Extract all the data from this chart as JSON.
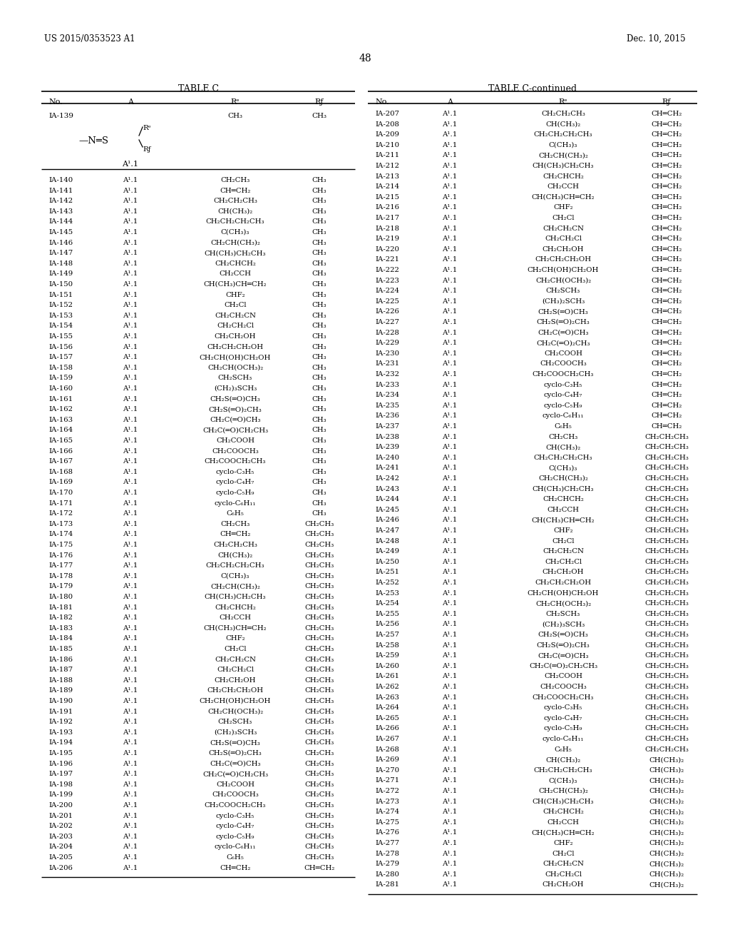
{
  "patent_number": "US 2015/0353523 A1",
  "patent_date": "Dec. 10, 2015",
  "page_number": "48",
  "table_c_title": "TABLE C",
  "table_c_continued_title": "TABLE C-continued",
  "left_table_rows": [
    [
      "IA-139",
      "A¹.1_structure",
      "CH₃",
      "CH₃"
    ],
    [
      "IA-140",
      "A¹.1",
      "CH₂CH₃",
      "CH₃"
    ],
    [
      "IA-141",
      "A¹.1",
      "CH═CH₂",
      "CH₃"
    ],
    [
      "IA-142",
      "A¹.1",
      "CH₂CH₂CH₃",
      "CH₃"
    ],
    [
      "IA-143",
      "A¹.1",
      "CH(CH₃)₂",
      "CH₃"
    ],
    [
      "IA-144",
      "A¹.1",
      "CH₂CH₂CH₂CH₃",
      "CH₃"
    ],
    [
      "IA-145",
      "A¹.1",
      "C(CH₃)₃",
      "CH₃"
    ],
    [
      "IA-146",
      "A¹.1",
      "CH₂CH(CH₃)₂",
      "CH₃"
    ],
    [
      "IA-147",
      "A¹.1",
      "CH(CH₃)CH₂CH₃",
      "CH₃"
    ],
    [
      "IA-148",
      "A¹.1",
      "CH₂CHCH₂",
      "CH₃"
    ],
    [
      "IA-149",
      "A¹.1",
      "CH₂CCH",
      "CH₃"
    ],
    [
      "IA-150",
      "A¹.1",
      "CH(CH₃)CH═CH₂",
      "CH₃"
    ],
    [
      "IA-151",
      "A¹.1",
      "CHF₂",
      "CH₃"
    ],
    [
      "IA-152",
      "A¹.1",
      "CH₂Cl",
      "CH₃"
    ],
    [
      "IA-153",
      "A¹.1",
      "CH₂CH₂CN",
      "CH₃"
    ],
    [
      "IA-154",
      "A¹.1",
      "CH₂CH₂Cl",
      "CH₃"
    ],
    [
      "IA-155",
      "A¹.1",
      "CH₂CH₂OH",
      "CH₃"
    ],
    [
      "IA-156",
      "A¹.1",
      "CH₂CH₂CH₂OH",
      "CH₃"
    ],
    [
      "IA-157",
      "A¹.1",
      "CH₂CH(OH)CH₂OH",
      "CH₃"
    ],
    [
      "IA-158",
      "A¹.1",
      "CH₂CH(OCH₃)₂",
      "CH₃"
    ],
    [
      "IA-159",
      "A¹.1",
      "CH₂SCH₃",
      "CH₃"
    ],
    [
      "IA-160",
      "A¹.1",
      "(CH₂)₃SCH₃",
      "CH₃"
    ],
    [
      "IA-161",
      "A¹.1",
      "CH₂S(═O)CH₃",
      "CH₃"
    ],
    [
      "IA-162",
      "A¹.1",
      "CH₂S(═O)₂CH₃",
      "CH₃"
    ],
    [
      "IA-163",
      "A¹.1",
      "CH₂C(═O)CH₃",
      "CH₃"
    ],
    [
      "IA-164",
      "A¹.1",
      "CH₂C(═O)CH₂CH₃",
      "CH₃"
    ],
    [
      "IA-165",
      "A¹.1",
      "CH₂COOH",
      "CH₃"
    ],
    [
      "IA-166",
      "A¹.1",
      "CH₂COOCH₃",
      "CH₃"
    ],
    [
      "IA-167",
      "A¹.1",
      "CH₂COOCH₂CH₃",
      "CH₃"
    ],
    [
      "IA-168",
      "A¹.1",
      "cyclo-C₃H₅",
      "CH₃"
    ],
    [
      "IA-169",
      "A¹.1",
      "cyclo-C₄H₇",
      "CH₃"
    ],
    [
      "IA-170",
      "A¹.1",
      "cyclo-C₅H₉",
      "CH₃"
    ],
    [
      "IA-171",
      "A¹.1",
      "cyclo-C₆H₁₁",
      "CH₃"
    ],
    [
      "IA-172",
      "A¹.1",
      "C₆H₅",
      "CH₃"
    ],
    [
      "IA-173",
      "A¹.1",
      "CH₂CH₃",
      "CH₂CH₃"
    ],
    [
      "IA-174",
      "A¹.1",
      "CH═CH₂",
      "CH₂CH₃"
    ],
    [
      "IA-175",
      "A¹.1",
      "CH₂CH₂CH₃",
      "CH₂CH₃"
    ],
    [
      "IA-176",
      "A¹.1",
      "CH(CH₃)₂",
      "CH₂CH₃"
    ],
    [
      "IA-177",
      "A¹.1",
      "CH₂CH₂CH₂CH₃",
      "CH₂CH₃"
    ],
    [
      "IA-178",
      "A¹.1",
      "C(CH₃)₃",
      "CH₂CH₃"
    ],
    [
      "IA-179",
      "A¹.1",
      "CH₂CH(CH₃)₂",
      "CH₂CH₃"
    ],
    [
      "IA-180",
      "A¹.1",
      "CH(CH₃)CH₂CH₃",
      "CH₂CH₃"
    ],
    [
      "IA-181",
      "A¹.1",
      "CH₂CHCH₂",
      "CH₂CH₃"
    ],
    [
      "IA-182",
      "A¹.1",
      "CH₂CCH",
      "CH₂CH₃"
    ],
    [
      "IA-183",
      "A¹.1",
      "CH(CH₃)CH═CH₂",
      "CH₂CH₃"
    ],
    [
      "IA-184",
      "A¹.1",
      "CHF₂",
      "CH₂CH₃"
    ],
    [
      "IA-185",
      "A¹.1",
      "CH₂Cl",
      "CH₂CH₃"
    ],
    [
      "IA-186",
      "A¹.1",
      "CH₂CH₂CN",
      "CH₂CH₃"
    ],
    [
      "IA-187",
      "A¹.1",
      "CH₂CH₂Cl",
      "CH₂CH₃"
    ],
    [
      "IA-188",
      "A¹.1",
      "CH₂CH₂OH",
      "CH₂CH₃"
    ],
    [
      "IA-189",
      "A¹.1",
      "CH₂CH₂CH₂OH",
      "CH₂CH₃"
    ],
    [
      "IA-190",
      "A¹.1",
      "CH₂CH(OH)CH₂OH",
      "CH₂CH₃"
    ],
    [
      "IA-191",
      "A¹.1",
      "CH₂CH(OCH₃)₂",
      "CH₂CH₃"
    ],
    [
      "IA-192",
      "A¹.1",
      "CH₂SCH₃",
      "CH₂CH₃"
    ],
    [
      "IA-193",
      "A¹.1",
      "(CH₂)₃SCH₃",
      "CH₂CH₃"
    ],
    [
      "IA-194",
      "A¹.1",
      "CH₂S(═O)CH₃",
      "CH₂CH₃"
    ],
    [
      "IA-195",
      "A¹.1",
      "CH₂S(═O)₂CH₃",
      "CH₂CH₃"
    ],
    [
      "IA-196",
      "A¹.1",
      "CH₂C(═O)CH₃",
      "CH₂CH₃"
    ],
    [
      "IA-197",
      "A¹.1",
      "CH₂C(═O)CH₂CH₃",
      "CH₂CH₃"
    ],
    [
      "IA-198",
      "A¹.1",
      "CH₂COOH",
      "CH₂CH₃"
    ],
    [
      "IA-199",
      "A¹.1",
      "CH₂COOCH₃",
      "CH₂CH₃"
    ],
    [
      "IA-200",
      "A¹.1",
      "CH₂COOCH₂CH₃",
      "CH₂CH₃"
    ],
    [
      "IA-201",
      "A¹.1",
      "cyclo-C₃H₅",
      "CH₂CH₃"
    ],
    [
      "IA-202",
      "A¹.1",
      "cyclo-C₄H₇",
      "CH₂CH₃"
    ],
    [
      "IA-203",
      "A¹.1",
      "cyclo-C₅H₉",
      "CH₂CH₃"
    ],
    [
      "IA-204",
      "A¹.1",
      "cyclo-C₆H₁₁",
      "CH₂CH₃"
    ],
    [
      "IA-205",
      "A¹.1",
      "C₆H₅",
      "CH₂CH₃"
    ],
    [
      "IA-206",
      "A¹.1",
      "CH═CH₂",
      "CH═CH₂"
    ]
  ],
  "right_table_rows": [
    [
      "IA-207",
      "A¹.1",
      "CH₂CH₂CH₃",
      "CH═CH₂"
    ],
    [
      "IA-208",
      "A¹.1",
      "CH(CH₃)₂",
      "CH═CH₂"
    ],
    [
      "IA-209",
      "A¹.1",
      "CH₂CH₂CH₂CH₃",
      "CH═CH₂"
    ],
    [
      "IA-210",
      "A¹.1",
      "C(CH₃)₃",
      "CH═CH₂"
    ],
    [
      "IA-211",
      "A¹.1",
      "CH₂CH(CH₃)₂",
      "CH═CH₂"
    ],
    [
      "IA-212",
      "A¹.1",
      "CH(CH₃)CH₂CH₃",
      "CH═CH₂"
    ],
    [
      "IA-213",
      "A¹.1",
      "CH₂CHCH₂",
      "CH═CH₂"
    ],
    [
      "IA-214",
      "A¹.1",
      "CH₂CCH",
      "CH═CH₂"
    ],
    [
      "IA-215",
      "A¹.1",
      "CH(CH₃)CH═CH₂",
      "CH═CH₂"
    ],
    [
      "IA-216",
      "A¹.1",
      "CHF₂",
      "CH═CH₂"
    ],
    [
      "IA-217",
      "A¹.1",
      "CH₂Cl",
      "CH═CH₂"
    ],
    [
      "IA-218",
      "A¹.1",
      "CH₂CH₂CN",
      "CH═CH₂"
    ],
    [
      "IA-219",
      "A¹.1",
      "CH₂CH₂Cl",
      "CH═CH₂"
    ],
    [
      "IA-220",
      "A¹.1",
      "CH₂CH₂OH",
      "CH═CH₂"
    ],
    [
      "IA-221",
      "A¹.1",
      "CH₂CH₂CH₂OH",
      "CH═CH₂"
    ],
    [
      "IA-222",
      "A¹.1",
      "CH₂CH(OH)CH₂OH",
      "CH═CH₂"
    ],
    [
      "IA-223",
      "A¹.1",
      "CH₂CH(OCH₃)₂",
      "CH═CH₂"
    ],
    [
      "IA-224",
      "A¹.1",
      "CH₂SCH₃",
      "CH═CH₂"
    ],
    [
      "IA-225",
      "A¹.1",
      "(CH₃)₂SCH₃",
      "CH═CH₂"
    ],
    [
      "IA-226",
      "A¹.1",
      "CH₂S(═O)CH₃",
      "CH═CH₂"
    ],
    [
      "IA-227",
      "A¹.1",
      "CH₂S(═O)₂CH₃",
      "CH═CH₂"
    ],
    [
      "IA-228",
      "A¹.1",
      "CH₂C(═O)CH₃",
      "CH═CH₂"
    ],
    [
      "IA-229",
      "A¹.1",
      "CH₂C(═O)₂CH₃",
      "CH═CH₂"
    ],
    [
      "IA-230",
      "A¹.1",
      "CH₂COOH",
      "CH═CH₂"
    ],
    [
      "IA-231",
      "A¹.1",
      "CH₂COOCH₃",
      "CH═CH₂"
    ],
    [
      "IA-232",
      "A¹.1",
      "CH₂COOCH₂CH₃",
      "CH═CH₂"
    ],
    [
      "IA-233",
      "A¹.1",
      "cyclo-C₃H₅",
      "CH═CH₂"
    ],
    [
      "IA-234",
      "A¹.1",
      "cyclo-C₄H₇",
      "CH═CH₂"
    ],
    [
      "IA-235",
      "A¹.1",
      "cyclo-C₅H₉",
      "CH═CH₂"
    ],
    [
      "IA-236",
      "A¹.1",
      "cyclo-C₆H₁₁",
      "CH═CH₂"
    ],
    [
      "IA-237",
      "A¹.1",
      "C₆H₅",
      "CH═CH₂"
    ],
    [
      "IA-238",
      "A¹.1",
      "CH₂CH₃",
      "CH₂CH₂CH₃"
    ],
    [
      "IA-239",
      "A¹.1",
      "CH(CH₃)₂",
      "CH₂CH₂CH₃"
    ],
    [
      "IA-240",
      "A¹.1",
      "CH₂CH₂CH₂CH₃",
      "CH₂CH₂CH₃"
    ],
    [
      "IA-241",
      "A¹.1",
      "C(CH₃)₃",
      "CH₂CH₂CH₃"
    ],
    [
      "IA-242",
      "A¹.1",
      "CH₂CH(CH₃)₂",
      "CH₂CH₂CH₃"
    ],
    [
      "IA-243",
      "A¹.1",
      "CH(CH₃)CH₂CH₃",
      "CH₂CH₂CH₃"
    ],
    [
      "IA-244",
      "A¹.1",
      "CH₂CHCH₂",
      "CH₂CH₂CH₃"
    ],
    [
      "IA-245",
      "A¹.1",
      "CH₂CCH",
      "CH₂CH₂CH₃"
    ],
    [
      "IA-246",
      "A¹.1",
      "CH(CH₃)CH═CH₂",
      "CH₂CH₂CH₃"
    ],
    [
      "IA-247",
      "A¹.1",
      "CHF₂",
      "CH₂CH₂CH₃"
    ],
    [
      "IA-248",
      "A¹.1",
      "CH₂Cl",
      "CH₂CH₂CH₃"
    ],
    [
      "IA-249",
      "A¹.1",
      "CH₂CH₂CN",
      "CH₂CH₂CH₃"
    ],
    [
      "IA-250",
      "A¹.1",
      "CH₂CH₂Cl",
      "CH₂CH₂CH₃"
    ],
    [
      "IA-251",
      "A¹.1",
      "CH₂CH₂OH",
      "CH₂CH₂CH₃"
    ],
    [
      "IA-252",
      "A¹.1",
      "CH₂CH₂CH₂OH",
      "CH₂CH₂CH₃"
    ],
    [
      "IA-253",
      "A¹.1",
      "CH₂CH(OH)CH₂OH",
      "CH₂CH₂CH₃"
    ],
    [
      "IA-254",
      "A¹.1",
      "CH₂CH(OCH₃)₂",
      "CH₂CH₂CH₃"
    ],
    [
      "IA-255",
      "A¹.1",
      "CH₂SCH₃",
      "CH₂CH₂CH₃"
    ],
    [
      "IA-256",
      "A¹.1",
      "(CH₂)₃SCH₃",
      "CH₂CH₂CH₃"
    ],
    [
      "IA-257",
      "A¹.1",
      "CH₂S(═O)CH₃",
      "CH₂CH₂CH₃"
    ],
    [
      "IA-258",
      "A¹.1",
      "CH₂S(═O)₂CH₃",
      "CH₂CH₂CH₃"
    ],
    [
      "IA-259",
      "A¹.1",
      "CH₂C(═O)CH₃",
      "CH₂CH₂CH₃"
    ],
    [
      "IA-260",
      "A¹.1",
      "CH₂C(═O)₂CH₂CH₃",
      "CH₂CH₂CH₃"
    ],
    [
      "IA-261",
      "A¹.1",
      "CH₂COOH",
      "CH₂CH₂CH₃"
    ],
    [
      "IA-262",
      "A¹.1",
      "CH₂COOCH₃",
      "CH₂CH₂CH₃"
    ],
    [
      "IA-263",
      "A¹.1",
      "CH₂COOCH₂CH₃",
      "CH₂CH₂CH₃"
    ],
    [
      "IA-264",
      "A¹.1",
      "cyclo-C₃H₅",
      "CH₂CH₂CH₃"
    ],
    [
      "IA-265",
      "A¹.1",
      "cyclo-C₄H₇",
      "CH₂CH₂CH₃"
    ],
    [
      "IA-266",
      "A¹.1",
      "cyclo-C₅H₉",
      "CH₂CH₂CH₃"
    ],
    [
      "IA-267",
      "A¹.1",
      "cyclo-C₆H₁₁",
      "CH₂CH₂CH₃"
    ],
    [
      "IA-268",
      "A¹.1",
      "C₆H₅",
      "CH₂CH₂CH₃"
    ],
    [
      "IA-269",
      "A¹.1",
      "CH(CH₃)₂",
      "CH(CH₃)₂"
    ],
    [
      "IA-270",
      "A¹.1",
      "CH₂CH₂CH₂CH₃",
      "CH(CH₃)₂"
    ],
    [
      "IA-271",
      "A¹.1",
      "C(CH₃)₃",
      "CH(CH₃)₂"
    ],
    [
      "IA-272",
      "A¹.1",
      "CH₂CH(CH₃)₂",
      "CH(CH₃)₂"
    ],
    [
      "IA-273",
      "A¹.1",
      "CH(CH₃)CH₂CH₃",
      "CH(CH₃)₂"
    ],
    [
      "IA-274",
      "A¹.1",
      "CH₂CHCH₂",
      "CH(CH₃)₂"
    ],
    [
      "IA-275",
      "A¹.1",
      "CH₂CCH",
      "CH(CH₃)₂"
    ],
    [
      "IA-276",
      "A¹.1",
      "CH(CH₃)CH═CH₂",
      "CH(CH₃)₂"
    ],
    [
      "IA-277",
      "A¹.1",
      "CHF₂",
      "CH(CH₃)₂"
    ],
    [
      "IA-278",
      "A¹.1",
      "CH₂Cl",
      "CH(CH₃)₂"
    ],
    [
      "IA-279",
      "A¹.1",
      "CH₂CH₂CN",
      "CH(CH₃)₂"
    ],
    [
      "IA-280",
      "A¹.1",
      "CH₂CH₂Cl",
      "CH(CH₃)₂"
    ],
    [
      "IA-281",
      "A¹.1",
      "CH₂CH₂OH",
      "CH(CH₃)₂"
    ]
  ],
  "bg_color": "#ffffff",
  "text_color": "#000000"
}
